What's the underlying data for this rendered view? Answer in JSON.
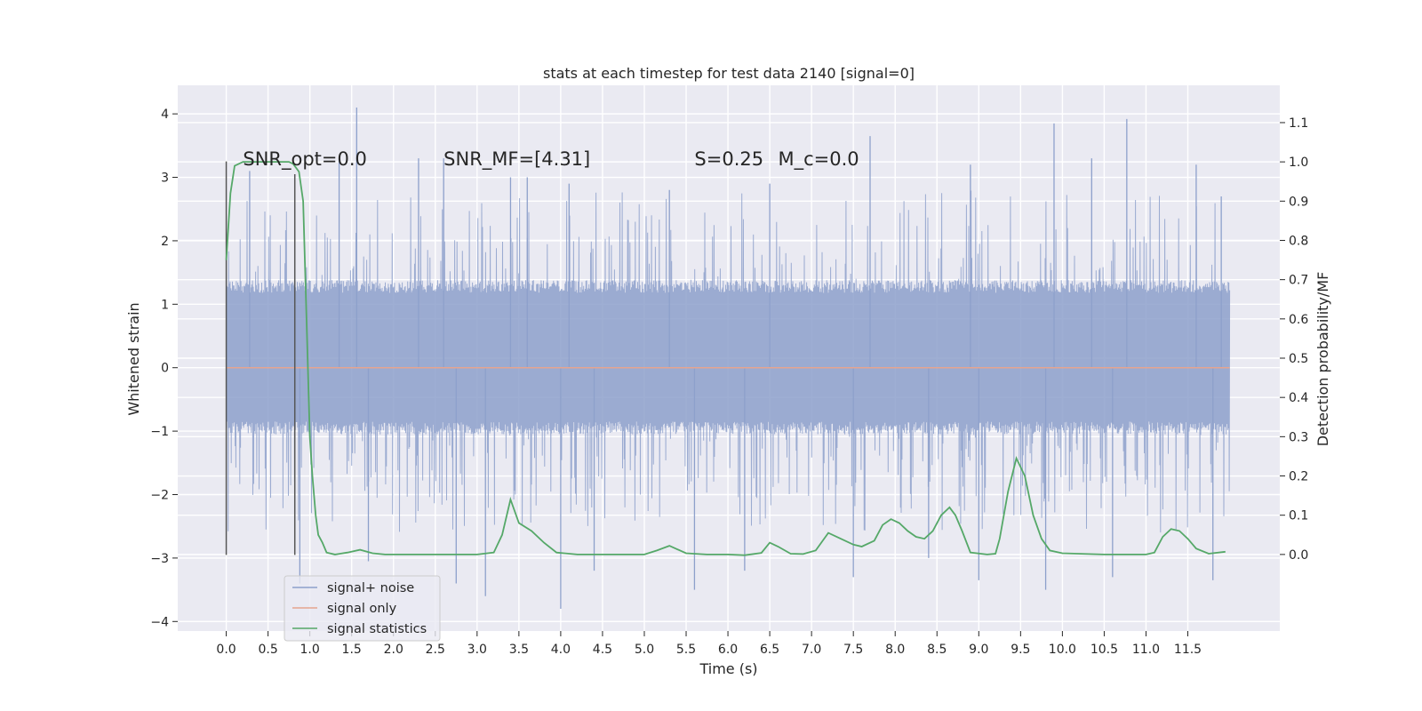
{
  "chart_data": {
    "type": "line",
    "title": "stats at each timestep for test data 2140 [signal=0]",
    "xlabel": "Time (s)",
    "ylabel": "Whitened strain",
    "ylabel_right": "Detection probability/MF",
    "xlim": [
      -0.58,
      12.6
    ],
    "ylim": [
      -4.15,
      4.45
    ],
    "ylim_right": [
      -0.195,
      1.195
    ],
    "x_ticks": [
      "0.0",
      "0.5",
      "1.0",
      "1.5",
      "2.0",
      "2.5",
      "3.0",
      "3.5",
      "4.0",
      "4.5",
      "5.0",
      "5.5",
      "6.0",
      "6.5",
      "7.0",
      "7.5",
      "8.0",
      "8.5",
      "9.0",
      "9.5",
      "10.0",
      "10.5",
      "11.0",
      "11.5"
    ],
    "y_ticks": [
      "4",
      "3",
      "2",
      "1",
      "0",
      "−1",
      "−2",
      "−3",
      "−4"
    ],
    "y_ticks_right": [
      "1.1",
      "1.0",
      "0.9",
      "0.8",
      "0.7",
      "0.6",
      "0.5",
      "0.4",
      "0.3",
      "0.2",
      "0.1",
      "0.0"
    ],
    "grid": true,
    "legend_position": "lower-left",
    "annotations": [
      {
        "text": "SNR_opt=0.0",
        "x": 0.2,
        "y": 3.3
      },
      {
        "text": "SNR_MF=[4.31]",
        "x": 2.6,
        "y": 3.3
      },
      {
        "text": "S=0.25",
        "x": 5.6,
        "y": 3.3
      },
      {
        "text": "M_c=0.0",
        "x": 6.6,
        "y": 3.3
      }
    ],
    "vlines": [
      {
        "x": 0.0,
        "y_from": -2.95,
        "y_to": 3.25
      },
      {
        "x": 0.82,
        "y_from": -2.95,
        "y_to": 3.05
      }
    ],
    "series": [
      {
        "name": "signal+ noise",
        "color": "#8da0cb",
        "kind": "noise",
        "x_range": [
          0.0,
          12.0
        ],
        "band": [
          -1.05,
          1.38
        ],
        "peaks_up": [
          [
            1.56,
            4.1
          ],
          [
            10.77,
            3.92
          ],
          [
            9.9,
            3.85
          ],
          [
            7.7,
            3.65
          ],
          [
            1.35,
            3.3
          ],
          [
            2.3,
            3.3
          ],
          [
            2.6,
            3.3
          ],
          [
            11.6,
            3.2
          ],
          [
            0.28,
            3.1
          ],
          [
            3.4,
            3.0
          ],
          [
            4.1,
            2.9
          ],
          [
            5.3,
            2.8
          ],
          [
            6.5,
            2.9
          ],
          [
            8.9,
            3.2
          ],
          [
            11.9,
            2.7
          ],
          [
            3.6,
            3.0
          ],
          [
            10.35,
            3.3
          ]
        ],
        "peaks_down": [
          [
            4.0,
            -3.8
          ],
          [
            3.1,
            -3.6
          ],
          [
            0.88,
            -3.4
          ],
          [
            5.6,
            -3.5
          ],
          [
            9.0,
            -3.35
          ],
          [
            9.8,
            -3.5
          ],
          [
            11.8,
            -3.35
          ],
          [
            4.4,
            -3.2
          ],
          [
            1.7,
            -3.05
          ],
          [
            7.5,
            -3.3
          ],
          [
            10.6,
            -3.3
          ],
          [
            6.2,
            -3.2
          ],
          [
            2.75,
            -3.4
          ],
          [
            8.4,
            -3.0
          ]
        ]
      },
      {
        "name": "signal only",
        "color": "#e5a590",
        "kind": "flat",
        "x": [
          0.0,
          12.0
        ],
        "y": [
          0.0,
          0.0
        ]
      },
      {
        "name": "signal statistics",
        "color": "#55a868",
        "axis": "right",
        "kind": "line",
        "x": [
          0.0,
          0.05,
          0.1,
          0.2,
          0.3,
          0.5,
          0.65,
          0.75,
          0.8,
          0.87,
          0.92,
          0.96,
          1.0,
          1.03,
          1.07,
          1.1,
          1.15,
          1.2,
          1.3,
          1.45,
          1.6,
          1.75,
          1.9,
          2.1,
          2.5,
          3.0,
          3.2,
          3.3,
          3.4,
          3.5,
          3.65,
          3.8,
          3.95,
          4.2,
          4.6,
          5.0,
          5.15,
          5.3,
          5.5,
          5.75,
          6.0,
          6.2,
          6.4,
          6.5,
          6.6,
          6.75,
          6.9,
          7.05,
          7.2,
          7.35,
          7.5,
          7.6,
          7.75,
          7.85,
          7.95,
          8.05,
          8.15,
          8.25,
          8.35,
          8.45,
          8.55,
          8.65,
          8.72,
          8.8,
          8.9,
          9.1,
          9.2,
          9.25,
          9.35,
          9.45,
          9.55,
          9.65,
          9.75,
          9.85,
          10.0,
          10.5,
          11.0,
          11.1,
          11.2,
          11.3,
          11.4,
          11.5,
          11.6,
          11.75,
          11.95
        ],
        "y": [
          0.75,
          0.92,
          0.99,
          1.0,
          1.0,
          1.0,
          1.0,
          1.0,
          0.995,
          0.975,
          0.9,
          0.6,
          0.3,
          0.2,
          0.1,
          0.05,
          0.03,
          0.005,
          0.0,
          0.005,
          0.012,
          0.003,
          0.0,
          0.0,
          0.0,
          0.0,
          0.005,
          0.05,
          0.14,
          0.08,
          0.06,
          0.03,
          0.005,
          0.0,
          0.0,
          0.0,
          0.01,
          0.022,
          0.003,
          0.0,
          0.0,
          -0.002,
          0.004,
          0.03,
          0.02,
          0.002,
          0.001,
          0.01,
          0.055,
          0.04,
          0.025,
          0.02,
          0.035,
          0.075,
          0.09,
          0.08,
          0.06,
          0.045,
          0.04,
          0.06,
          0.1,
          0.12,
          0.1,
          0.06,
          0.005,
          0.0,
          0.002,
          0.04,
          0.16,
          0.245,
          0.2,
          0.1,
          0.04,
          0.01,
          0.003,
          0.0,
          0.0,
          0.005,
          0.045,
          0.065,
          0.06,
          0.04,
          0.015,
          0.002,
          0.007
        ]
      }
    ]
  }
}
